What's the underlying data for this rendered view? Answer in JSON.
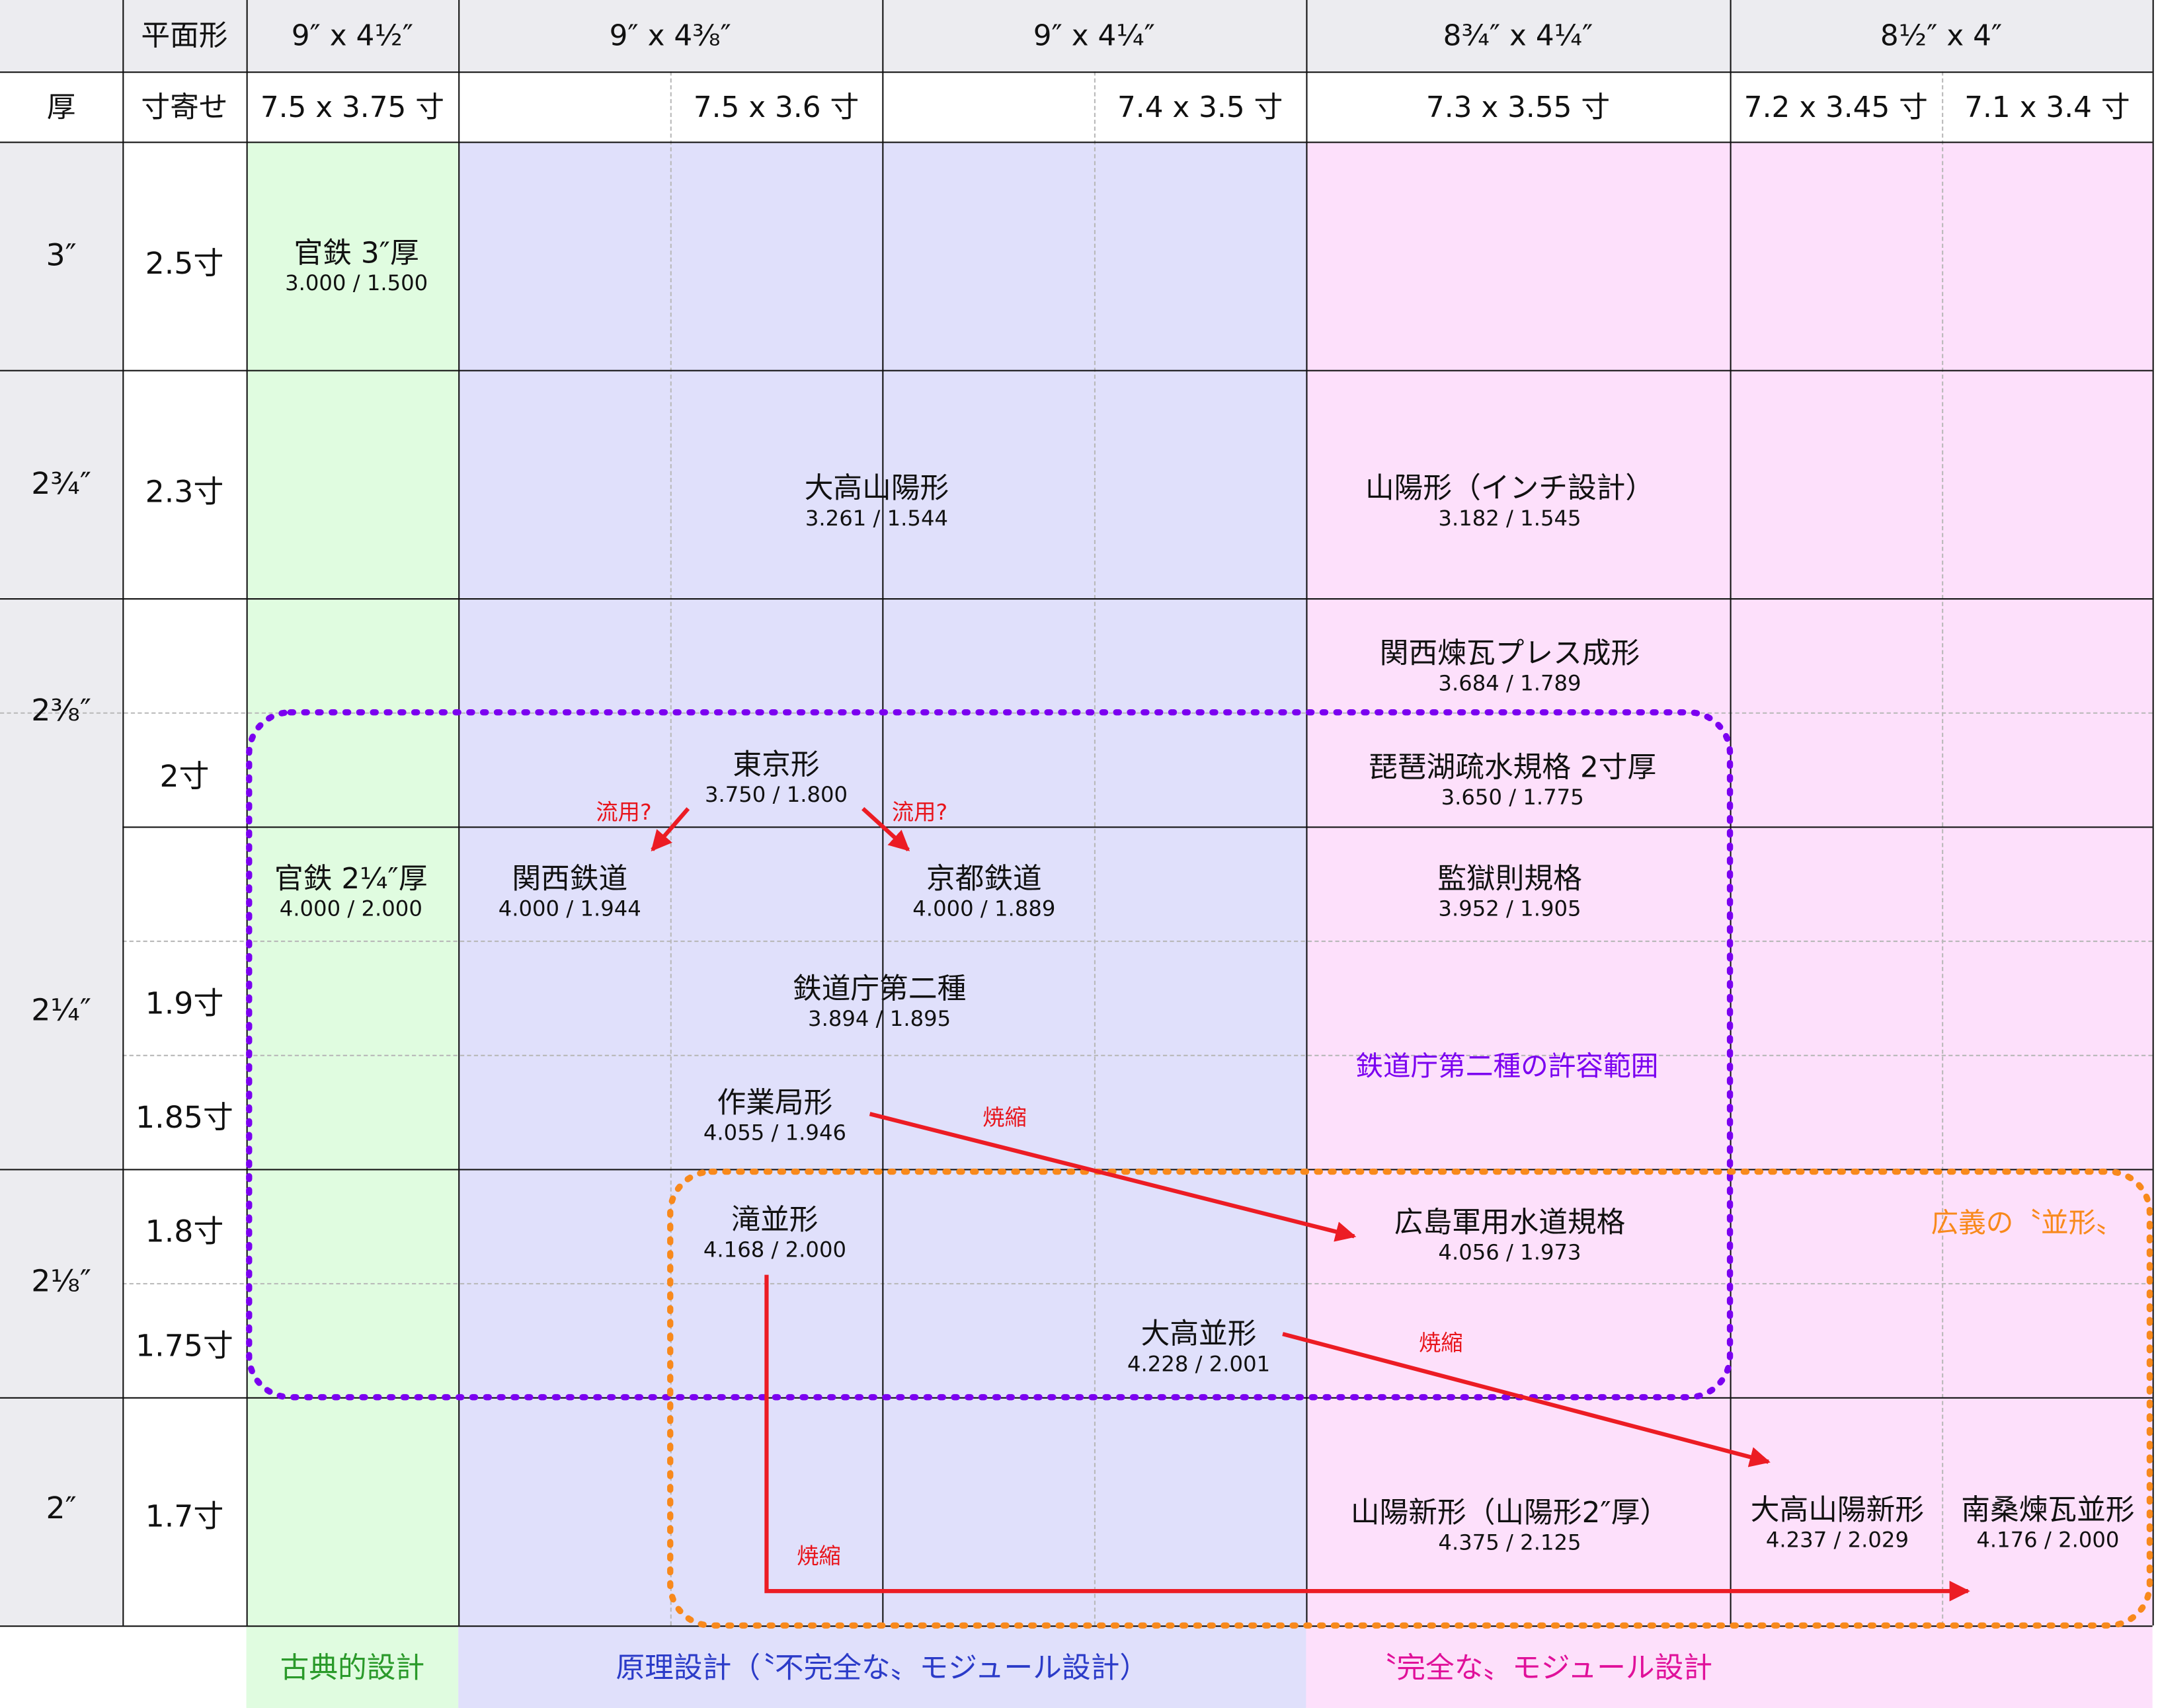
{
  "header": {
    "corner": "",
    "plan_label": "平面形",
    "thickness_label": "厚",
    "sun_label": "寸寄せ",
    "plan_sizes": [
      "9″ x 4½″",
      "9″ x 4⅜″",
      "9″ x 4¼″",
      "8¾″ x 4¼″",
      "8½″ x 4″"
    ],
    "sun_sizes": [
      "7.5 x 3.75 寸",
      "7.5 x 3.6 寸",
      "7.4 x 3.5 寸",
      "7.3 x 3.55 寸",
      "7.2 x 3.45 寸",
      "7.1 x 3.4 寸"
    ]
  },
  "rows": {
    "inch_labels": [
      "3″",
      "2¾″",
      "2⅜″",
      "2¼″",
      "2⅛″",
      "2″"
    ],
    "sun_labels": [
      "2.5寸",
      "2.3寸",
      "2寸",
      "1.9寸",
      "1.85寸",
      "1.8寸",
      "1.75寸",
      "1.7寸"
    ]
  },
  "bricks": [
    {
      "name": "官鉄 3″厚",
      "values": "3.000 / 1.500"
    },
    {
      "name": "大高山陽形",
      "values": "3.261 / 1.544"
    },
    {
      "name": "山陽形（インチ設計）",
      "values": "3.182 / 1.545"
    },
    {
      "name": "関西煉瓦プレス成形",
      "values": "3.684 / 1.789"
    },
    {
      "name": "東京形",
      "values": "3.750 / 1.800"
    },
    {
      "name": "琵琶湖疏水規格 2寸厚",
      "values": "3.650 / 1.775"
    },
    {
      "name": "官鉄 2¼″厚",
      "values": "4.000 / 2.000"
    },
    {
      "name": "関西鉄道",
      "values": "4.000 / 1.944"
    },
    {
      "name": "京都鉄道",
      "values": "4.000 / 1.889"
    },
    {
      "name": "監獄則規格",
      "values": "3.952 / 1.905"
    },
    {
      "name": "鉄道庁第二種",
      "values": "3.894 / 1.895"
    },
    {
      "name": "作業局形",
      "values": "4.055 / 1.946"
    },
    {
      "name": "滝並形",
      "values": "4.168 / 2.000"
    },
    {
      "name": "広島軍用水道規格",
      "values": "4.056 / 1.973"
    },
    {
      "name": "大高並形",
      "values": "4.228 / 2.001"
    },
    {
      "name": "山陽新形（山陽形2″厚）",
      "values": "4.375 / 2.125"
    },
    {
      "name": "大高山陽新形",
      "values": "4.237 / 2.029"
    },
    {
      "name": "南桑煉瓦並形",
      "values": "4.176 / 2.000"
    }
  ],
  "annotations": {
    "ryuyou_1": "流用?",
    "ryuyou_2": "流用?",
    "shoshuku_1": "焼縮",
    "shoshuku_2": "焼縮",
    "shoshuku_3": "焼縮"
  },
  "ranges": {
    "tetsudocho": "鉄道庁第二種の許容範囲",
    "namigata": "広義の〝並形〟"
  },
  "footer": {
    "classic": "古典的設計",
    "principle": "原理設計（〝不完全な〟モジュール設計）",
    "complete": "〝完全な〟モジュール設計"
  },
  "colors": {
    "green": "#e0fce0",
    "blue": "#e0e0fb",
    "pink": "#fde0fb",
    "header_gray": "#ececf0",
    "arrow_red": "#ec1c24",
    "purple_dotted": "#7b00f0",
    "orange_dotted": "#f8891c",
    "classic_text": "#2a9a2a",
    "principle_text": "#2b3bc8",
    "complete_text": "#e0109a"
  }
}
